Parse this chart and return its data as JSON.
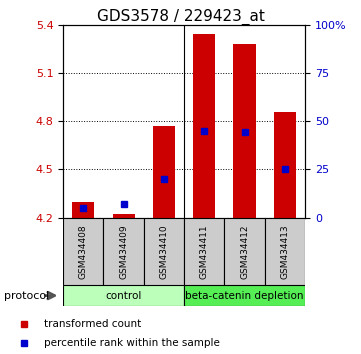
{
  "title": "GDS3578 / 229423_at",
  "samples": [
    "GSM434408",
    "GSM434409",
    "GSM434410",
    "GSM434411",
    "GSM434412",
    "GSM434413"
  ],
  "bar_bottom": 4.2,
  "bar_tops": [
    4.3,
    4.22,
    4.77,
    5.34,
    5.28,
    4.86
  ],
  "blue_markers": [
    4.26,
    4.285,
    4.44,
    4.74,
    4.735,
    4.505
  ],
  "ylim_left": [
    4.2,
    5.4
  ],
  "ylim_right": [
    0,
    100
  ],
  "yticks_left": [
    4.2,
    4.5,
    4.8,
    5.1,
    5.4
  ],
  "yticks_right": [
    0,
    25,
    50,
    75,
    100
  ],
  "ytick_labels_right": [
    "0",
    "25",
    "50",
    "75",
    "100%"
  ],
  "bar_color": "#cc0000",
  "blue_color": "#0000cc",
  "bg_plot": "#ffffff",
  "sample_bg": "#cccccc",
  "group_labels": [
    "control",
    "beta-catenin depletion"
  ],
  "group_ranges": [
    [
      0,
      3
    ],
    [
      3,
      6
    ]
  ],
  "group_colors": [
    "#bbffbb",
    "#55ee55"
  ],
  "protocol_label": "protocol",
  "legend_red": "transformed count",
  "legend_blue": "percentile rank within the sample",
  "title_fontsize": 11,
  "axis_fontsize": 8,
  "bar_width": 0.55
}
